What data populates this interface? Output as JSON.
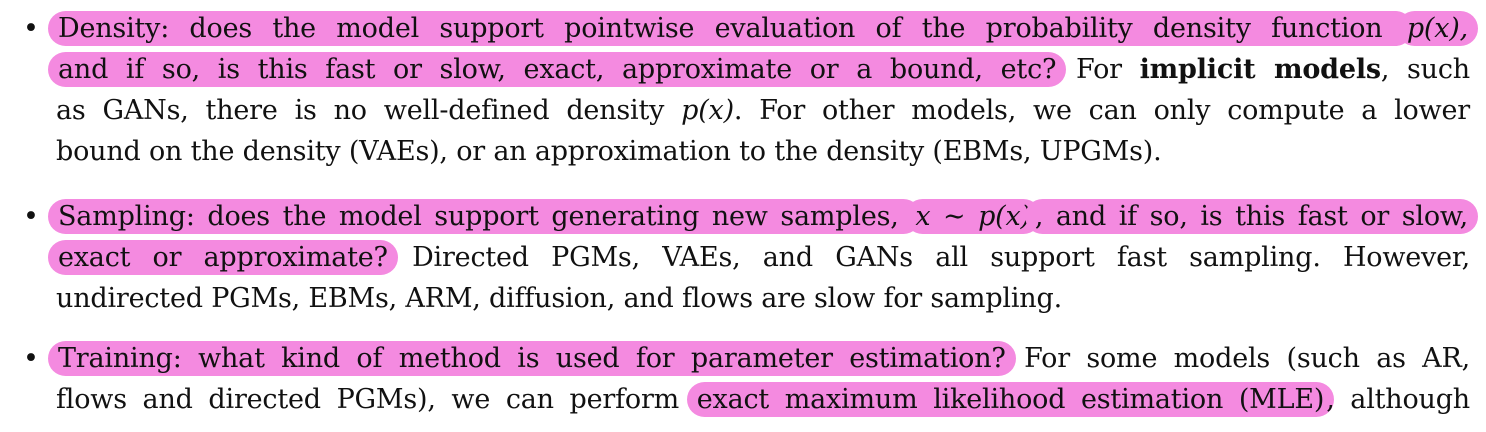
{
  "bullets": [
    {
      "lines": [
        {
          "parts": [
            {
              "text": "Density: does the model support pointwise evaluation of the probability density function ",
              "hl": true
            },
            {
              "text": "p(x),",
              "hl": true,
              "math": true
            }
          ]
        },
        {
          "parts": [
            {
              "text": "and if so, is this fast or slow, exact, approximate or a bound, etc?",
              "hl": true
            },
            {
              "text": " For ",
              "hl": false
            },
            {
              "text": "implicit models",
              "hl": false,
              "bold": true
            },
            {
              "text": ", such",
              "hl": false
            }
          ]
        },
        {
          "parts": [
            {
              "text": "as GANs, there is no well-defined density ",
              "hl": false
            },
            {
              "text": "p(x)",
              "hl": false,
              "math": true
            },
            {
              "text": ". For other models, we can only compute a lower",
              "hl": false
            }
          ]
        },
        {
          "parts": [
            {
              "text": "bound on the density (VAEs), or an approximation to the density (EBMs, UPGMs).",
              "hl": false
            }
          ],
          "last": true
        }
      ]
    },
    {
      "lines": [
        {
          "parts": [
            {
              "text": "Sampling: does the model support generating new samples, ",
              "hl": true
            },
            {
              "text": "x ∼ p(x)",
              "hl": true,
              "math": true
            },
            {
              "text": ", and if so, is this fast or slow,",
              "hl": true
            }
          ]
        },
        {
          "parts": [
            {
              "text": "exact or approximate?",
              "hl": true
            },
            {
              "text": " Directed PGMs, VAEs, and GANs all support fast sampling. However,",
              "hl": false
            }
          ]
        },
        {
          "parts": [
            {
              "text": "undirected PGMs, EBMs, ARM, diffusion, and flows are slow for sampling.",
              "hl": false
            }
          ],
          "last": true
        }
      ]
    },
    {
      "lines": [
        {
          "parts": [
            {
              "text": "Training: what kind of method is used for parameter estimation?",
              "hl": true
            },
            {
              "text": " For some models (such as AR,",
              "hl": false
            }
          ]
        },
        {
          "parts": [
            {
              "text": "flows and directed PGMs), we can perform ",
              "hl": false
            },
            {
              "text": "exact maximum likelihood estimation (MLE)",
              "hl": true
            },
            {
              "text": ", although",
              "hl": false
            }
          ]
        }
      ]
    }
  ],
  "bullet_symbol": "•",
  "colors": {
    "highlight": "#f48ae0",
    "text": "#111111",
    "background": "#ffffff"
  }
}
